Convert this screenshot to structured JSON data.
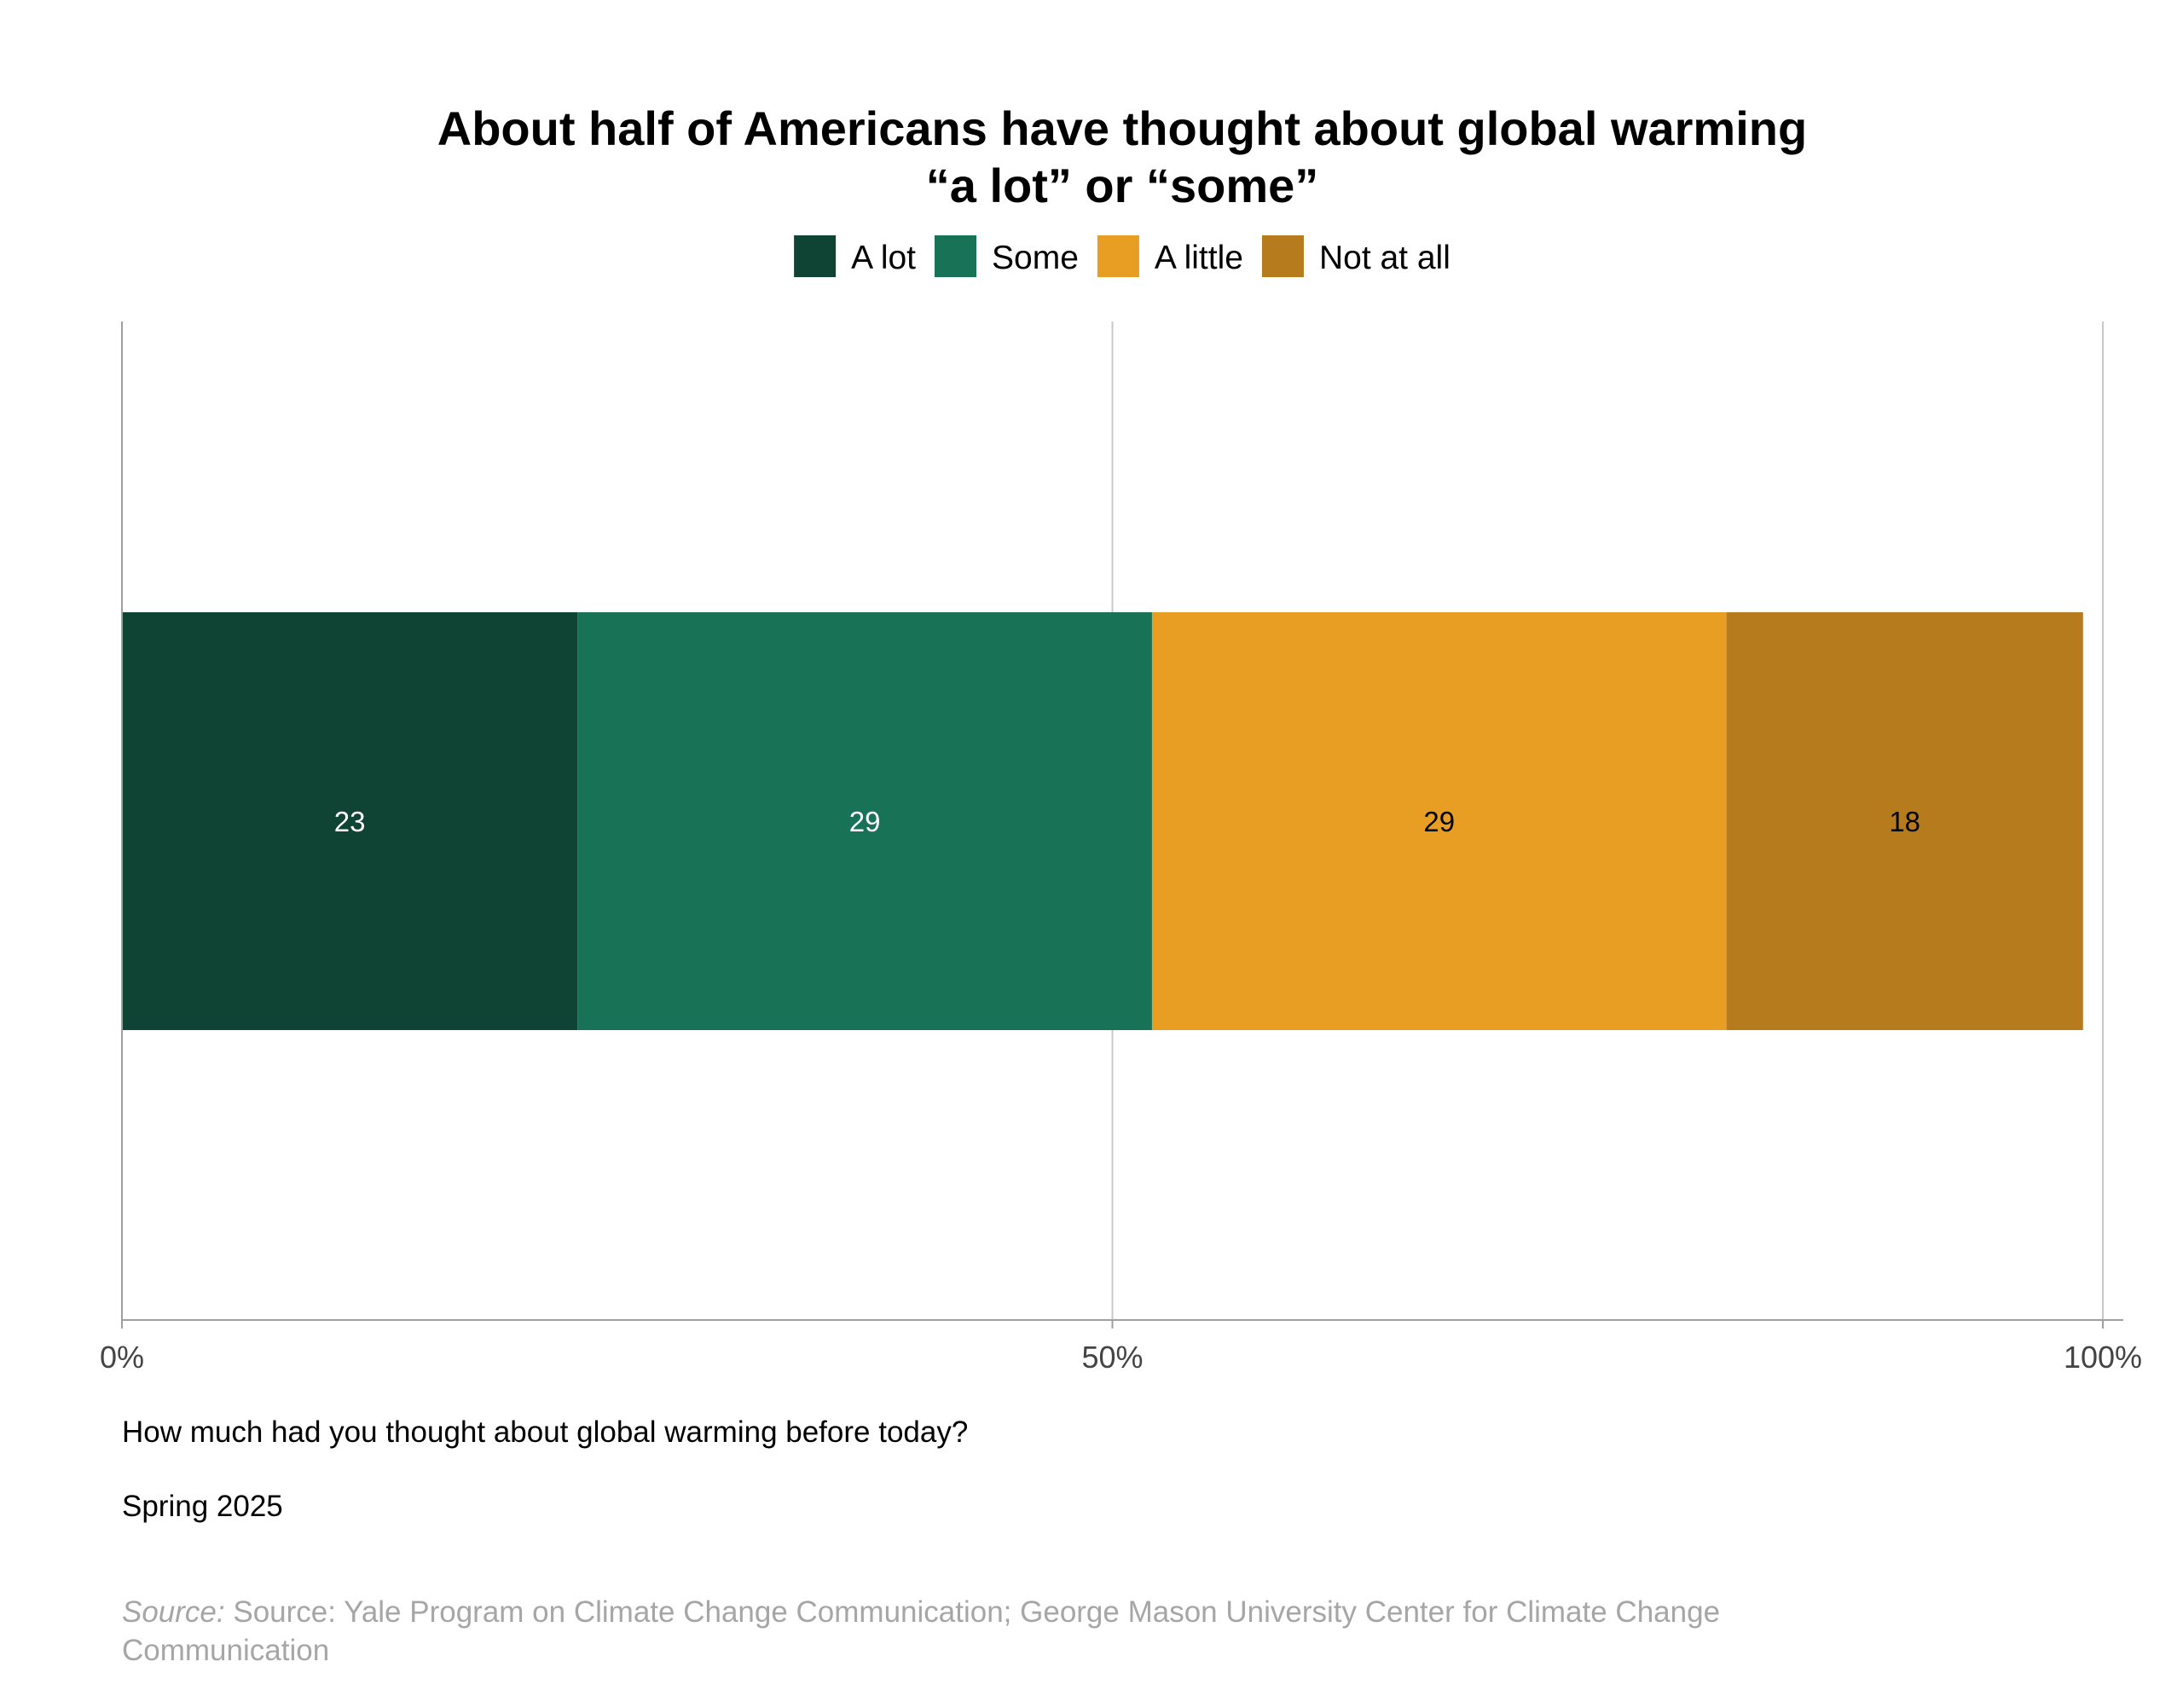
{
  "chart_data": {
    "type": "bar",
    "orientation": "horizontal",
    "stacked": true,
    "title": "About half of Americans have thought about global warming",
    "title_line2": "“a lot” or “some”",
    "categories": [
      ""
    ],
    "series": [
      {
        "name": "A lot",
        "values": [
          23
        ],
        "color": "#0f4434",
        "label_color": "#ffffff"
      },
      {
        "name": "Some",
        "values": [
          29
        ],
        "color": "#187256",
        "label_color": "#ffffff"
      },
      {
        "name": "A little",
        "values": [
          29
        ],
        "color": "#e89d23",
        "label_color": "#000000"
      },
      {
        "name": "Not at all",
        "values": [
          18
        ],
        "color": "#b67b1d",
        "label_color": "#000000"
      }
    ],
    "xlim": [
      0,
      100
    ],
    "xticks": [
      0,
      50,
      100
    ],
    "xtick_labels": [
      "0%",
      "50%",
      "100%"
    ],
    "grid": "vertical at 0, 50, 100",
    "legend_position": "top-center"
  },
  "notes": {
    "question": "How much had you thought about global warming before today?",
    "date": "Spring 2025",
    "source_prefix": "Source:",
    "source_text": "Source: Yale Program on Climate Change Communication; George Mason University Center for Climate Change Communication"
  }
}
